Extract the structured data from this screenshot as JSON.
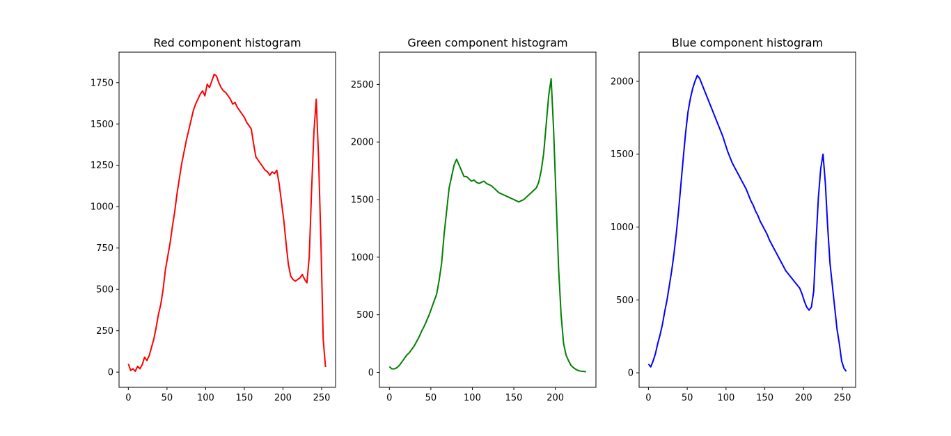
{
  "chart_data": [
    {
      "type": "line",
      "title": "Red component histogram",
      "color": "#ff0000",
      "xlim": [
        -12,
        268
      ],
      "ylim": [
        -92,
        1934
      ],
      "xticks": [
        0,
        50,
        100,
        150,
        200,
        250
      ],
      "yticks": [
        0,
        250,
        500,
        750,
        1000,
        1250,
        1500,
        1750
      ],
      "x": [
        0,
        3,
        6,
        9,
        12,
        15,
        18,
        21,
        24,
        27,
        30,
        33,
        36,
        39,
        42,
        45,
        48,
        51,
        54,
        57,
        60,
        63,
        66,
        69,
        72,
        75,
        78,
        81,
        84,
        87,
        90,
        93,
        96,
        99,
        102,
        105,
        108,
        111,
        114,
        117,
        120,
        123,
        126,
        129,
        132,
        135,
        138,
        141,
        144,
        147,
        150,
        153,
        156,
        159,
        162,
        165,
        168,
        171,
        174,
        177,
        180,
        183,
        186,
        189,
        192,
        195,
        198,
        201,
        204,
        207,
        210,
        213,
        216,
        219,
        222,
        225,
        228,
        231,
        234,
        237,
        240,
        243,
        246,
        249,
        252,
        255
      ],
      "y": [
        50,
        10,
        20,
        5,
        35,
        20,
        45,
        90,
        70,
        100,
        150,
        200,
        270,
        350,
        410,
        500,
        620,
        700,
        780,
        880,
        970,
        1080,
        1170,
        1260,
        1330,
        1400,
        1460,
        1520,
        1580,
        1620,
        1650,
        1680,
        1700,
        1670,
        1740,
        1720,
        1760,
        1800,
        1790,
        1750,
        1720,
        1700,
        1690,
        1670,
        1650,
        1620,
        1630,
        1600,
        1580,
        1560,
        1540,
        1510,
        1490,
        1470,
        1380,
        1300,
        1280,
        1260,
        1240,
        1220,
        1210,
        1190,
        1210,
        1200,
        1220,
        1140,
        1030,
        920,
        780,
        650,
        580,
        560,
        550,
        560,
        570,
        590,
        560,
        540,
        700,
        1100,
        1450,
        1650,
        1300,
        800,
        200,
        30
      ]
    },
    {
      "type": "line",
      "title": "Green component histogram",
      "color": "#008000",
      "xlim": [
        -12,
        249
      ],
      "ylim": [
        -130,
        2780
      ],
      "xticks": [
        0,
        50,
        100,
        150,
        200
      ],
      "yticks": [
        0,
        500,
        1000,
        1500,
        2000,
        2500
      ],
      "x": [
        0,
        3,
        6,
        9,
        12,
        15,
        18,
        21,
        24,
        27,
        30,
        33,
        36,
        39,
        42,
        45,
        48,
        51,
        54,
        57,
        60,
        63,
        66,
        69,
        72,
        75,
        78,
        81,
        84,
        87,
        90,
        93,
        96,
        99,
        102,
        105,
        108,
        111,
        114,
        117,
        120,
        123,
        126,
        129,
        132,
        135,
        138,
        141,
        144,
        147,
        150,
        153,
        156,
        159,
        162,
        165,
        168,
        171,
        174,
        177,
        180,
        183,
        186,
        189,
        192,
        195,
        198,
        201,
        204,
        207,
        210,
        213,
        216,
        219,
        222,
        225,
        228,
        231,
        234,
        237
      ],
      "y": [
        50,
        30,
        30,
        40,
        60,
        90,
        120,
        150,
        170,
        200,
        230,
        270,
        310,
        360,
        400,
        450,
        500,
        560,
        620,
        680,
        800,
        950,
        1200,
        1400,
        1600,
        1700,
        1800,
        1850,
        1800,
        1750,
        1700,
        1700,
        1680,
        1660,
        1670,
        1650,
        1640,
        1650,
        1660,
        1640,
        1630,
        1620,
        1600,
        1580,
        1560,
        1550,
        1540,
        1530,
        1520,
        1510,
        1500,
        1490,
        1480,
        1490,
        1500,
        1520,
        1540,
        1560,
        1580,
        1600,
        1650,
        1750,
        1900,
        2150,
        2400,
        2550,
        2100,
        1500,
        900,
        500,
        250,
        150,
        100,
        60,
        40,
        25,
        15,
        10,
        8,
        5
      ]
    },
    {
      "type": "line",
      "title": "Blue component histogram",
      "color": "#0000ff",
      "xlim": [
        -12,
        267
      ],
      "ylim": [
        -100,
        2200
      ],
      "xticks": [
        0,
        50,
        100,
        150,
        200,
        250
      ],
      "yticks": [
        0,
        500,
        1000,
        1500,
        2000
      ],
      "x": [
        0,
        3,
        6,
        9,
        12,
        15,
        18,
        21,
        24,
        27,
        30,
        33,
        36,
        39,
        42,
        45,
        48,
        51,
        54,
        57,
        60,
        63,
        66,
        69,
        72,
        75,
        78,
        81,
        84,
        87,
        90,
        93,
        96,
        99,
        102,
        105,
        108,
        111,
        114,
        117,
        120,
        123,
        126,
        129,
        132,
        135,
        138,
        141,
        144,
        147,
        150,
        153,
        156,
        159,
        162,
        165,
        168,
        171,
        174,
        177,
        180,
        183,
        186,
        189,
        192,
        195,
        198,
        201,
        204,
        207,
        210,
        213,
        216,
        219,
        222,
        225,
        228,
        231,
        234,
        237,
        240,
        243,
        246,
        249,
        252,
        255
      ],
      "y": [
        60,
        40,
        80,
        130,
        200,
        260,
        330,
        420,
        500,
        600,
        700,
        820,
        960,
        1120,
        1300,
        1480,
        1650,
        1790,
        1880,
        1950,
        2000,
        2040,
        2020,
        1980,
        1940,
        1900,
        1860,
        1820,
        1780,
        1740,
        1700,
        1660,
        1620,
        1570,
        1520,
        1480,
        1440,
        1410,
        1380,
        1350,
        1320,
        1290,
        1260,
        1220,
        1180,
        1150,
        1110,
        1080,
        1040,
        1010,
        980,
        950,
        910,
        880,
        850,
        820,
        790,
        760,
        730,
        700,
        680,
        660,
        640,
        620,
        600,
        580,
        540,
        490,
        450,
        430,
        450,
        560,
        900,
        1200,
        1400,
        1500,
        1300,
        1000,
        750,
        600,
        450,
        300,
        200,
        80,
        30,
        10
      ]
    }
  ]
}
